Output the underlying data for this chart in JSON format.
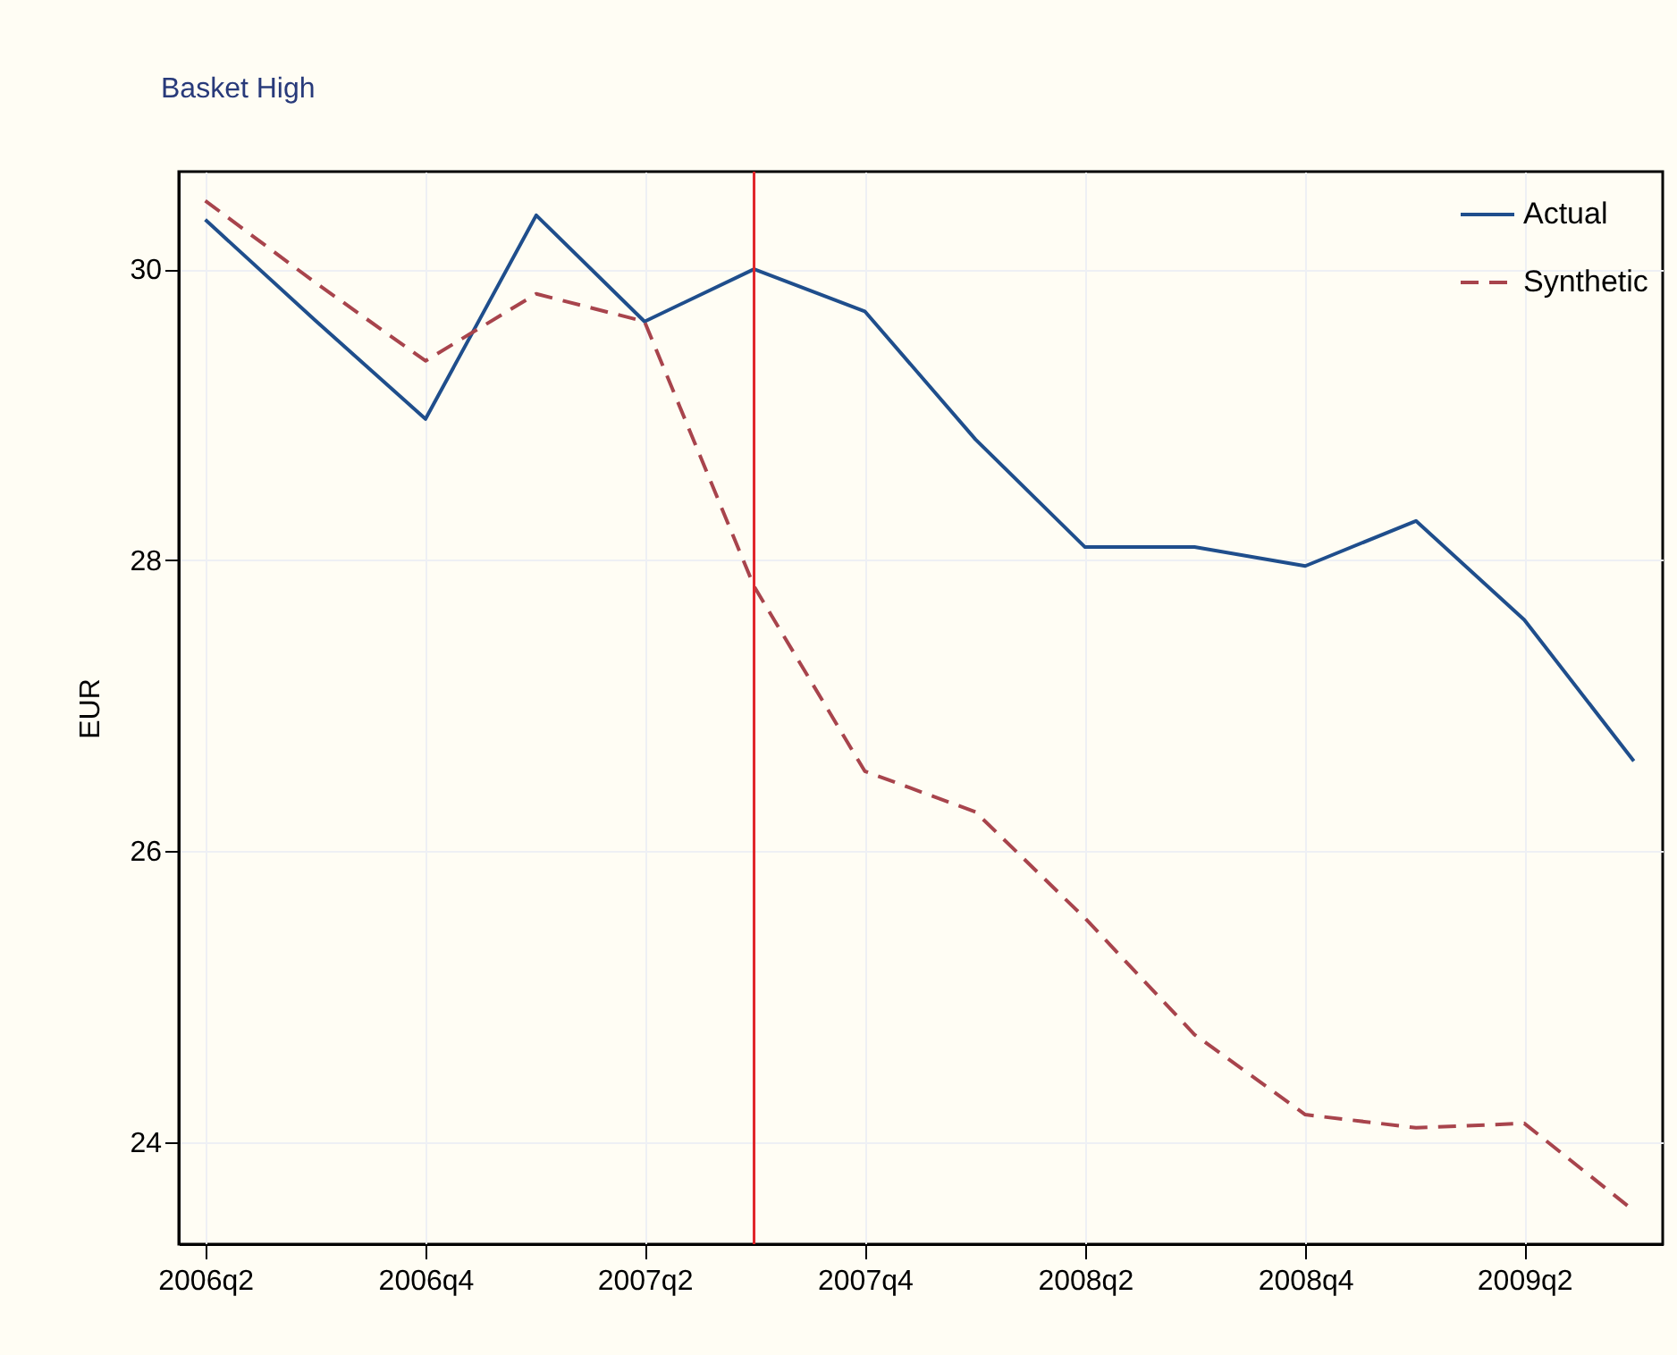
{
  "chart_data": {
    "type": "line",
    "title": "Basket High",
    "ylabel": "EUR",
    "x": [
      "2006-04-01",
      "2006-07-01",
      "2006-10-01",
      "2007-01-01",
      "2007-04-01",
      "2007-07-01",
      "2007-10-01",
      "2008-01-01",
      "2008-04-01",
      "2008-07-01",
      "2008-10-01",
      "2009-01-01",
      "2009-04-01",
      "2009-07-01"
    ],
    "series": [
      {
        "name": "Actual",
        "color": "#1f4e8c",
        "line_style": "solid",
        "values": [
          30.34,
          29.65,
          28.97,
          30.37,
          29.64,
          30.0,
          29.71,
          28.83,
          28.09,
          28.09,
          27.96,
          28.27,
          27.59,
          26.62
        ]
      },
      {
        "name": "Synthetic",
        "color": "#a8444c",
        "line_style": "dashed",
        "values": [
          30.47,
          29.91,
          29.37,
          29.83,
          29.64,
          27.82,
          26.55,
          26.27,
          25.54,
          24.74,
          24.19,
          24.1,
          24.13,
          23.53
        ]
      }
    ],
    "xlim": [
      "2006-03-10",
      "2009-07-25"
    ],
    "ylim": [
      23.3,
      30.67
    ],
    "xticks": [
      {
        "value": "2006-04-01",
        "label": "2006q2"
      },
      {
        "value": "2006-10-01",
        "label": "2006q4"
      },
      {
        "value": "2007-04-01",
        "label": "2007q2"
      },
      {
        "value": "2007-10-01",
        "label": "2007q4"
      },
      {
        "value": "2008-04-01",
        "label": "2008q2"
      },
      {
        "value": "2008-10-01",
        "label": "2008q4"
      },
      {
        "value": "2009-04-01",
        "label": "2009q2"
      }
    ],
    "yticks": [
      24,
      26,
      28,
      30
    ],
    "grid": true,
    "legend": "top right",
    "ref_lines": [
      {
        "axis": "x",
        "value": "2007-07-01",
        "color": "#e0252a"
      }
    ]
  }
}
